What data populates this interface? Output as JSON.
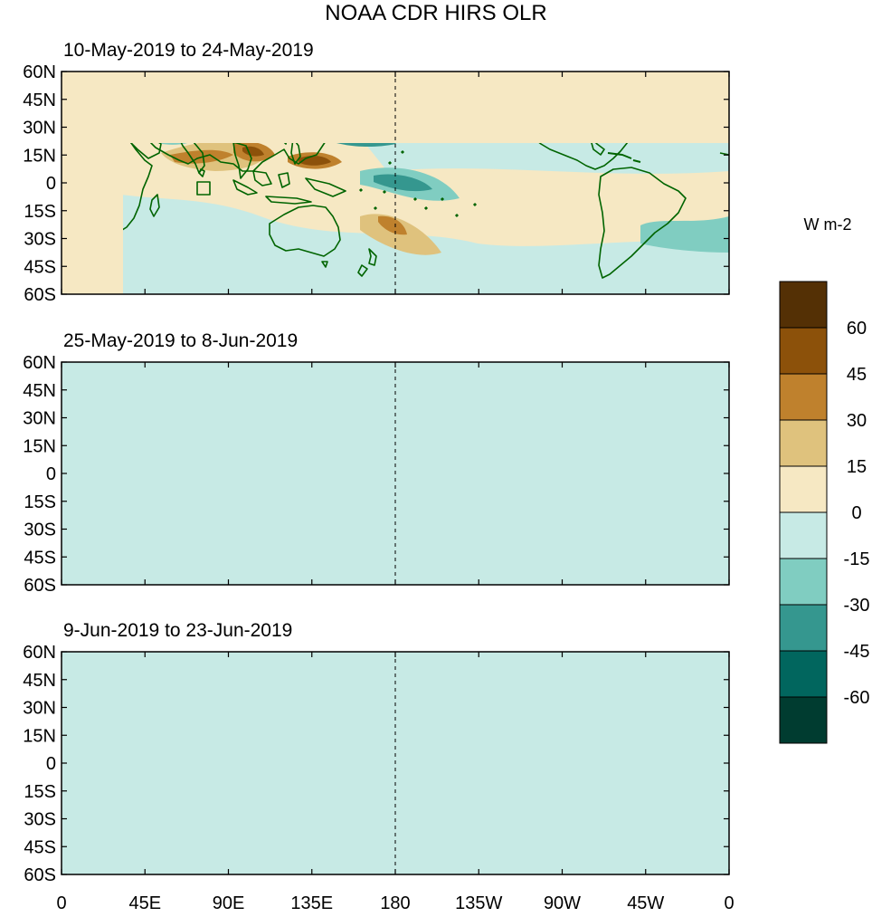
{
  "title": "NOAA CDR HIRS OLR",
  "panels": [
    {
      "label": "10-May-2019 to 24-May-2019"
    },
    {
      "label": "25-May-2019 to 8-Jun-2019"
    },
    {
      "label": "9-Jun-2019 to 23-Jun-2019"
    }
  ],
  "lat_ticks": [
    "60N",
    "45N",
    "30N",
    "15N",
    "0",
    "15S",
    "30S",
    "45S",
    "60S"
  ],
  "lon_ticks": [
    "0",
    "45E",
    "90E",
    "135E",
    "180",
    "135W",
    "90W",
    "45W",
    "0"
  ],
  "colorbar": {
    "units": "W m-2",
    "tick_labels": [
      "60",
      "45",
      "30",
      "15",
      "0",
      "-15",
      "-30",
      "-45",
      "-60"
    ],
    "colors": [
      "#543005",
      "#8c510a",
      "#bf812d",
      "#dfc27d",
      "#f6e8c3",
      "#c7eae5",
      "#80cdc1",
      "#35978f",
      "#01665e",
      "#003c30"
    ]
  },
  "map_colors": {
    "ocean_neutral_pos": "#f6e8c3",
    "ocean_neutral_neg": "#c7eae5",
    "coastline": "#006400"
  }
}
